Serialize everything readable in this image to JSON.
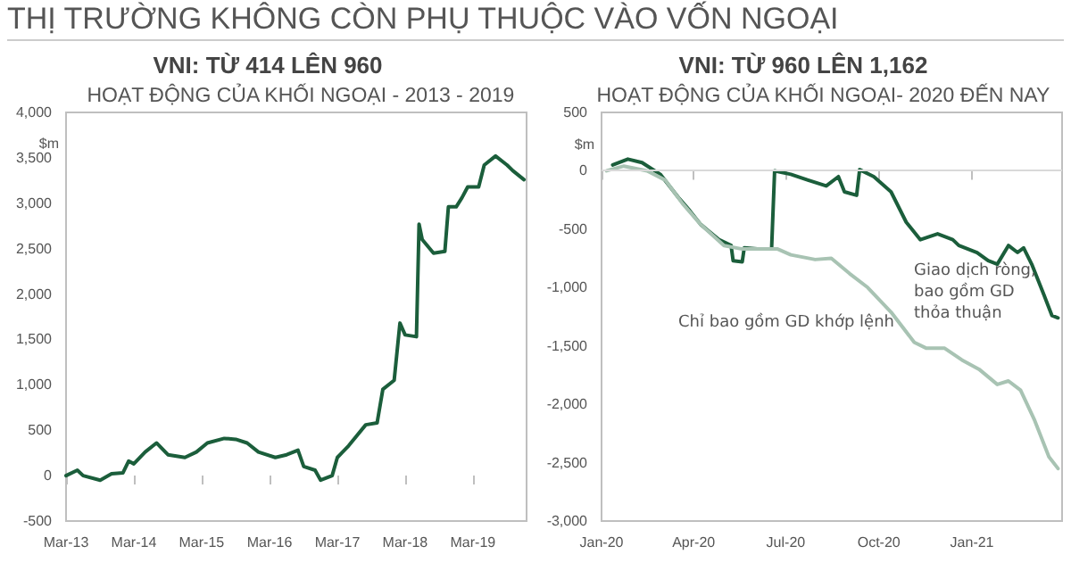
{
  "chart_data": [
    {
      "type": "line",
      "title": "VNI: TỪ 414 LÊN 960",
      "subtitle": "HOẠT ĐỘNG CỦA KHỐI NGOẠI - 2013 - 2019",
      "ylabel": "$m",
      "annotations": [
        "THỊ TRƯỜNG KHÔNG CÒN PHỤ THUỘC VÀO VỐN NGOẠI"
      ],
      "xlim": [
        "2013-03-01",
        "2019-12-15"
      ],
      "xticks": [
        {
          "value": "2013-03-01",
          "label": "Mar-13"
        },
        {
          "value": "2014-03-01",
          "label": "Mar-14"
        },
        {
          "value": "2015-03-01",
          "label": "Mar-15"
        },
        {
          "value": "2016-03-01",
          "label": "Mar-16"
        },
        {
          "value": "2017-03-01",
          "label": "Mar-17"
        },
        {
          "value": "2018-03-01",
          "label": "Mar-18"
        },
        {
          "value": "2019-03-01",
          "label": "Mar-19"
        }
      ],
      "ylim": [
        -500,
        4000
      ],
      "yticks": [
        {
          "value": -500,
          "label": "-500"
        },
        {
          "value": 0,
          "label": "0"
        },
        {
          "value": 500,
          "label": "500"
        },
        {
          "value": 1000,
          "label": "1,000"
        },
        {
          "value": 1500,
          "label": "1,500"
        },
        {
          "value": 2000,
          "label": "2,000"
        },
        {
          "value": 2500,
          "label": "2,500"
        },
        {
          "value": 3000,
          "label": "3,000"
        },
        {
          "value": 3500,
          "label": "3,500"
        },
        {
          "value": 4000,
          "label": "4,000"
        }
      ],
      "grid": false,
      "legend": false,
      "marker": "none",
      "line_style": "solid",
      "series": [
        {
          "color": "#1b5e3b",
          "x": [
            "2013-03-01",
            "2013-05-01",
            "2013-06-01",
            "2013-09-01",
            "2013-11-01",
            "2014-01-01",
            "2014-02-01",
            "2014-03-01",
            "2014-05-01",
            "2014-07-01",
            "2014-09-01",
            "2014-12-01",
            "2015-02-01",
            "2015-04-01",
            "2015-07-01",
            "2015-09-01",
            "2015-11-01",
            "2016-01-01",
            "2016-04-01",
            "2016-06-01",
            "2016-08-01",
            "2016-09-01",
            "2016-11-01",
            "2016-12-01",
            "2017-02-01",
            "2017-03-01",
            "2017-05-01",
            "2017-08-01",
            "2017-10-01",
            "2017-11-01",
            "2018-01-01",
            "2018-02-01",
            "2018-03-01",
            "2018-05-01",
            "2018-05-15",
            "2018-06-01",
            "2018-08-01",
            "2018-10-01",
            "2018-10-20",
            "2018-12-01",
            "2019-01-01",
            "2019-02-01",
            "2019-04-01",
            "2019-05-01",
            "2019-07-01",
            "2019-09-01",
            "2019-10-01",
            "2019-12-01"
          ],
          "values": [
            0,
            60,
            0,
            -50,
            20,
            30,
            160,
            130,
            260,
            360,
            230,
            200,
            260,
            360,
            410,
            400,
            360,
            260,
            200,
            230,
            280,
            100,
            60,
            -50,
            0,
            200,
            330,
            560,
            580,
            950,
            1050,
            1680,
            1550,
            1530,
            2770,
            2600,
            2450,
            2470,
            2960,
            2960,
            3060,
            3180,
            3180,
            3420,
            3520,
            3420,
            3360,
            3260
          ]
        }
      ]
    },
    {
      "type": "line",
      "title": "VNI: TỪ 960 LÊN 1,162",
      "subtitle": "HOẠT ĐỘNG CỦA KHỐI NGOẠI- 2020 ĐẾN NAY",
      "ylabel": "$m",
      "xlim": [
        "2020-01-01",
        "2021-03-31"
      ],
      "xticks": [
        {
          "value": "2020-01-01",
          "label": "Jan-20"
        },
        {
          "value": "2020-04-01",
          "label": "Apr-20"
        },
        {
          "value": "2020-07-01",
          "label": "Jul-20"
        },
        {
          "value": "2020-10-01",
          "label": "Oct-20"
        },
        {
          "value": "2021-01-01",
          "label": "Jan-21"
        }
      ],
      "ylim": [
        -3000,
        500
      ],
      "yticks": [
        {
          "value": -3000,
          "label": "-3,000"
        },
        {
          "value": -2500,
          "label": "-2,500"
        },
        {
          "value": -2000,
          "label": "-2,000"
        },
        {
          "value": -1500,
          "label": "-1,500"
        },
        {
          "value": -1000,
          "label": "-1,000"
        },
        {
          "value": -500,
          "label": "-500"
        },
        {
          "value": 0,
          "label": "0"
        },
        {
          "value": 500,
          "label": "500"
        }
      ],
      "grid": false,
      "legend": false,
      "marker": "none",
      "line_style": "solid",
      "ref_lines": [
        {
          "axis": "y",
          "value": 0,
          "color": "#d9d9d9"
        }
      ],
      "series": [
        {
          "name": "Giao dịch ròng, bao gồm GD thỏa thuận",
          "color": "#1b5e3b",
          "x": [
            "2020-01-12",
            "2020-01-27",
            "2020-02-10",
            "2020-02-28",
            "2020-03-17",
            "2020-03-28",
            "2020-04-08",
            "2020-04-26",
            "2020-05-08",
            "2020-05-10",
            "2020-05-19",
            "2020-05-21",
            "2020-06-03",
            "2020-06-17",
            "2020-06-20",
            "2020-07-06",
            "2020-07-23",
            "2020-08-10",
            "2020-08-22",
            "2020-08-28",
            "2020-09-09",
            "2020-09-12",
            "2020-09-26",
            "2020-10-13",
            "2020-10-28",
            "2020-11-11",
            "2020-11-28",
            "2020-12-13",
            "2020-12-19",
            "2021-01-06",
            "2021-01-17",
            "2021-01-26",
            "2021-02-06",
            "2021-02-15",
            "2021-02-21",
            "2021-03-01",
            "2021-03-13",
            "2021-03-21",
            "2021-03-27"
          ],
          "values": [
            50,
            100,
            70,
            -30,
            -230,
            -340,
            -460,
            -590,
            -640,
            -770,
            -780,
            -660,
            -670,
            -670,
            0,
            -30,
            -80,
            -130,
            -50,
            -180,
            -210,
            10,
            -50,
            -180,
            -440,
            -590,
            -540,
            -590,
            -640,
            -700,
            -770,
            -800,
            -640,
            -700,
            -660,
            -800,
            -1060,
            -1240,
            -1260
          ]
        },
        {
          "name": "Chỉ bao gồm GD khớp lệnh",
          "color": "#a8c3b3",
          "x": [
            "2020-01-06",
            "2020-01-23",
            "2020-02-15",
            "2020-03-04",
            "2020-03-21",
            "2020-04-08",
            "2020-05-01",
            "2020-05-19",
            "2020-06-23",
            "2020-07-06",
            "2020-07-30",
            "2020-08-15",
            "2020-09-02",
            "2020-09-20",
            "2020-10-13",
            "2020-11-05",
            "2020-11-17",
            "2020-12-05",
            "2020-12-22",
            "2021-01-08",
            "2021-01-26",
            "2021-02-06",
            "2021-02-18",
            "2021-03-04",
            "2021-03-18",
            "2021-03-27"
          ],
          "values": [
            0,
            40,
            0,
            -80,
            -280,
            -460,
            -640,
            -670,
            -670,
            -720,
            -760,
            -750,
            -880,
            -1000,
            -1210,
            -1470,
            -1520,
            -1520,
            -1620,
            -1700,
            -1830,
            -1800,
            -1880,
            -2140,
            -2450,
            -2550
          ]
        }
      ]
    }
  ]
}
